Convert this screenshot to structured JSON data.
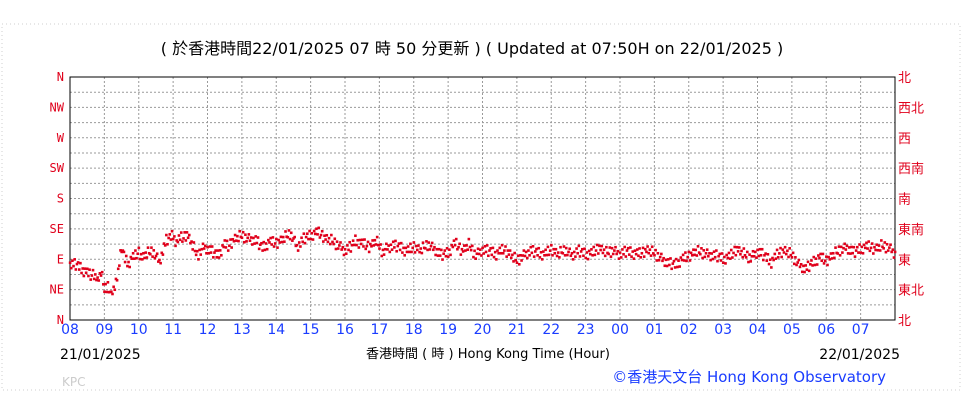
{
  "header": {
    "title": "( 於香港時間22/01/2025 07 時 50 分更新 ) ( Updated at 07:50H on 22/01/2025 )"
  },
  "footer": {
    "start_date": "21/01/2025",
    "end_date": "22/01/2025",
    "xlabel": "香港時間 ( 時 ) Hong Kong Time (Hour)",
    "credit": "©香港天文台 Hong Kong Observatory",
    "watermark": "KPC"
  },
  "colors": {
    "points": "#e0001b",
    "left_axis_labels": "#e0001b",
    "right_axis_labels": "#e0001b",
    "hour_labels": "#1a3cff",
    "credit": "#1a3cff",
    "grid": "#9a9a9a"
  },
  "chart_data": {
    "type": "scatter",
    "title": "( 於香港時間22/01/2025 07 時 50 分更新 ) ( Updated at 07:50H on 22/01/2025 )",
    "xlabel": "香港時間 ( 時 ) Hong Kong Time (Hour)",
    "x_unit": "hours since 21/01/2025 08:00",
    "xlim": [
      0,
      24
    ],
    "x_ticks": [
      "08",
      "09",
      "10",
      "11",
      "12",
      "13",
      "14",
      "15",
      "16",
      "17",
      "18",
      "19",
      "20",
      "21",
      "22",
      "23",
      "00",
      "01",
      "02",
      "03",
      "04",
      "05",
      "06",
      "07"
    ],
    "ylim": [
      0,
      360
    ],
    "y_unit": "wind direction (degrees)",
    "y_ticks_left": [
      "N",
      "NE",
      "E",
      "SE",
      "S",
      "SW",
      "W",
      "NW",
      "N"
    ],
    "y_ticks_right": [
      "北",
      "東北",
      "東",
      "東南",
      "南",
      "西南",
      "西",
      "西北",
      "北"
    ],
    "grid": true,
    "legend": "none",
    "anchors": {
      "x": [
        0.0,
        0.2,
        0.35,
        0.5,
        0.6,
        0.7,
        0.8,
        0.9,
        1.0,
        1.1,
        1.2,
        1.3,
        1.4,
        1.5,
        1.6,
        1.7,
        1.8,
        1.9,
        2.0,
        2.1,
        2.2,
        2.4,
        2.6,
        2.8,
        3.0,
        3.1,
        3.2,
        3.3,
        3.4,
        3.5,
        3.7,
        3.9,
        4.1,
        4.3,
        4.5,
        4.6,
        4.8,
        5.0,
        5.2,
        5.4,
        5.6,
        5.8,
        6.0,
        6.2,
        6.4,
        6.5,
        6.6,
        6.8,
        7.0,
        7.2,
        7.4,
        7.6,
        7.8,
        8.0,
        8.1,
        8.2,
        8.3,
        8.5,
        8.7,
        8.9,
        9.1,
        9.2,
        9.4,
        9.6,
        9.8,
        10.0,
        10.2,
        10.4,
        10.6,
        10.8,
        11.0,
        11.2,
        11.4,
        11.6,
        11.8,
        12.0,
        12.2,
        12.4,
        12.6,
        12.8,
        13.0,
        13.2,
        13.4,
        13.6,
        13.8,
        14.0,
        14.2,
        14.4,
        14.6,
        14.8,
        15.0,
        15.2,
        15.4,
        15.6,
        15.8,
        16.0,
        16.2,
        16.4,
        16.6,
        16.8,
        17.0,
        17.2,
        17.4,
        17.6,
        17.8,
        18.0,
        18.2,
        18.4,
        18.6,
        18.8,
        19.0,
        19.2,
        19.4,
        19.6,
        19.8,
        20.0,
        20.2,
        20.4,
        20.6,
        20.8,
        21.0,
        21.2,
        21.4,
        21.6,
        21.8,
        22.0,
        22.2,
        22.4,
        22.6,
        22.8,
        23.0,
        23.2,
        23.4,
        23.6,
        23.8,
        24.0
      ],
      "y": [
        82,
        82,
        75,
        70,
        65,
        68,
        58,
        72,
        45,
        52,
        35,
        52,
        70,
        108,
        90,
        84,
        92,
        95,
        100,
        92,
        98,
        102,
        86,
        118,
        126,
        114,
        122,
        121,
        127,
        118,
        96,
        108,
        102,
        96,
        112,
        108,
        121,
        125,
        120,
        118,
        107,
        116,
        113,
        121,
        128,
        120,
        108,
        120,
        126,
        130,
        122,
        118,
        111,
        102,
        106,
        110,
        118,
        113,
        108,
        118,
        100,
        106,
        110,
        108,
        102,
        108,
        104,
        112,
        105,
        96,
        100,
        114,
        102,
        112,
        96,
        104,
        102,
        98,
        104,
        98,
        88,
        96,
        102,
        100,
        97,
        104,
        98,
        104,
        96,
        102,
        98,
        99,
        107,
        100,
        103,
        97,
        102,
        99,
        98,
        104,
        99,
        91,
        84,
        82,
        90,
        94,
        102,
        100,
        96,
        95,
        91,
        94,
        105,
        98,
        92,
        101,
        95,
        86,
        98,
        103,
        96,
        82,
        75,
        85,
        93,
        87,
        97,
        104,
        107,
        100,
        106,
        109,
        105,
        110,
        108,
        98
      ]
    },
    "jitter": [
      3,
      -5,
      6,
      -2,
      8,
      -7,
      1,
      5,
      -4,
      7,
      -6,
      2,
      -8,
      4,
      -1,
      6,
      -3,
      8,
      -5,
      0,
      7,
      -7,
      3,
      -2,
      5,
      -4,
      2,
      -6,
      8,
      -1,
      -3,
      6,
      -8,
      4,
      -5,
      1,
      7,
      -2,
      3,
      -7
    ],
    "points_per_hour": 30
  }
}
